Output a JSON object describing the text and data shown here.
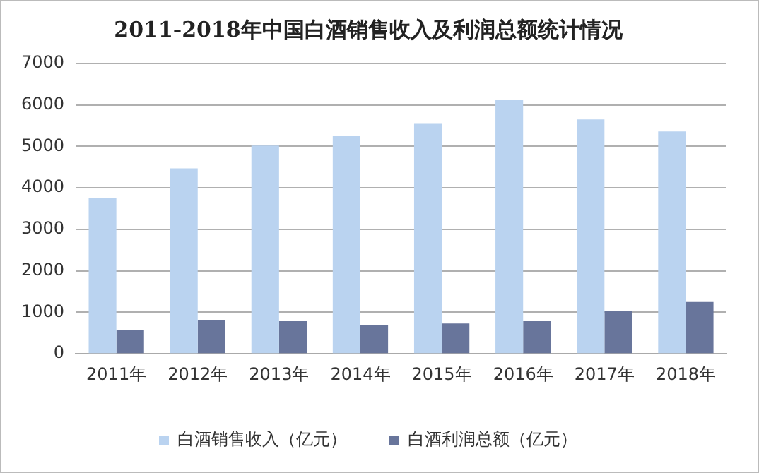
{
  "chart_data": {
    "type": "bar",
    "title": "2011-2018年中国白酒销售收入及利润总额统计情况",
    "categories": [
      "2011年",
      "2012年",
      "2013年",
      "2014年",
      "2015年",
      "2016年",
      "2017年",
      "2018年"
    ],
    "series": [
      {
        "name": "白酒销售收入（亿元）",
        "color": "#bad3f0",
        "values": [
          3750,
          4470,
          5020,
          5260,
          5560,
          6130,
          5650,
          5360
        ]
      },
      {
        "name": "白酒利润总额（亿元）",
        "color": "#68759b",
        "values": [
          570,
          820,
          800,
          700,
          730,
          800,
          1030,
          1250
        ]
      }
    ],
    "ylim": [
      0,
      7000
    ],
    "yticks": [
      0,
      1000,
      2000,
      3000,
      4000,
      5000,
      6000,
      7000
    ],
    "grid": "y",
    "legend": "bottom"
  }
}
